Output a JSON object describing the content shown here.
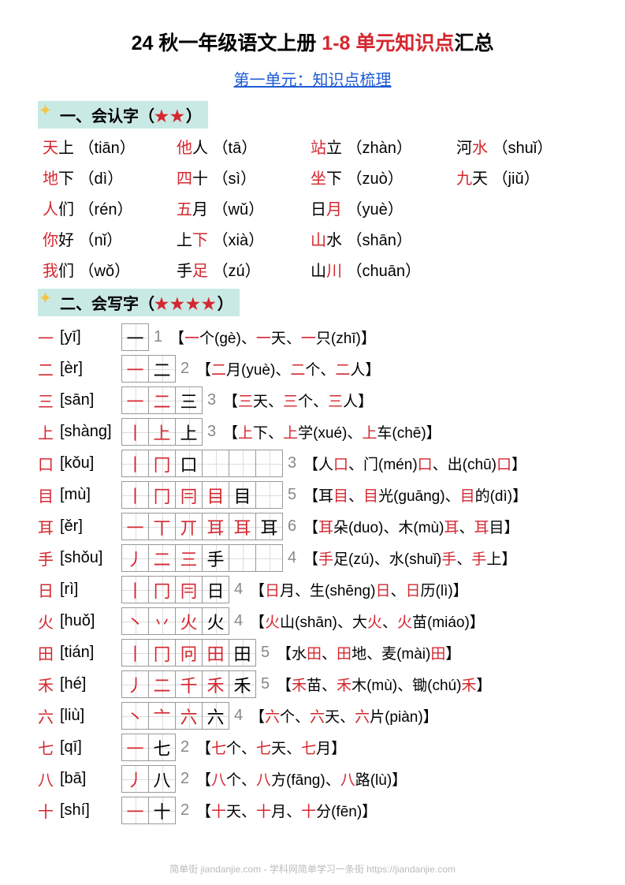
{
  "title": {
    "pre": "24 秋一年级语文上册 ",
    "highlight": "1-8 单元知识点",
    "post": "汇总"
  },
  "subtitle": "第一单元：知识点梳理",
  "section1": {
    "label_pre": "一、会认字（",
    "stars": "★★",
    "label_post": "）"
  },
  "recognize": [
    [
      {
        "hl": "天",
        "txt": "上",
        "py": "（tiān）"
      },
      {
        "hl": "他",
        "txt": "人",
        "py": "（tā）"
      },
      {
        "hl": "站",
        "txt": "立",
        "py": "（zhàn）"
      },
      {
        "txt": "河",
        "hl2": "水",
        "py": "（shuǐ）"
      }
    ],
    [
      {
        "hl": "地",
        "txt": "下",
        "py": "（dì）"
      },
      {
        "hl": "四",
        "txt": "十",
        "py": "（sì）"
      },
      {
        "hl": "坐",
        "txt": "下",
        "py": "（zuò）"
      },
      {
        "hl": "九",
        "txt": "天",
        "py": "（jiǔ）"
      }
    ],
    [
      {
        "hl": "人",
        "txt": "们",
        "py": "（rén）"
      },
      {
        "hl": "五",
        "txt": "月",
        "py": "（wǔ）"
      },
      {
        "txt": "日",
        "hl2": "月",
        "py": "（yuè）"
      }
    ],
    [
      {
        "hl": "你",
        "txt": "好",
        "py": "（nǐ）"
      },
      {
        "txt": "上",
        "hl2": "下",
        "py": "（xià）"
      },
      {
        "hl": "山",
        "txt": "水",
        "py": "（shān）"
      }
    ],
    [
      {
        "hl": "我",
        "txt": "们",
        "py": "（wǒ）"
      },
      {
        "txt": "手",
        "hl2": "足",
        "py": "（zú）"
      },
      {
        "txt": "山",
        "hl2": "川",
        "py": "（chuān）"
      }
    ]
  ],
  "section2": {
    "label_pre": "二、会写字（",
    "stars": "★★★★",
    "label_post": "）"
  },
  "write": [
    {
      "char": "一",
      "py": "[yī]",
      "strokes": [
        "一"
      ],
      "count": "1",
      "ex": "【<hl>一</hl>个(gè)、<hl>一</hl>天、<hl>一</hl>只(zhī)】"
    },
    {
      "char": "二",
      "py": "[èr]",
      "strokes": [
        "一",
        "二"
      ],
      "count": "2",
      "ex": "【<hl>二</hl>月(yuè)、<hl>二</hl>个、<hl>二</hl>人】"
    },
    {
      "char": "三",
      "py": "[sān]",
      "strokes": [
        "一",
        "二",
        "三"
      ],
      "count": "3",
      "ex": "【<hl>三</hl>天、<hl>三</hl>个、<hl>三</hl>人】"
    },
    {
      "char": "上",
      "py": "[shàng]",
      "strokes": [
        "丨",
        "上",
        "上"
      ],
      "count": "3",
      "ex": "【<hl>上</hl>下、<hl>上</hl>学(xué)、<hl>上</hl>车(chē)】"
    },
    {
      "char": "口",
      "py": "[kǒu]",
      "strokes": [
        "丨",
        "冂",
        "口"
      ],
      "count": "3",
      "ex": "【人<hl>口</hl>、门(mén)<hl>口</hl>、出(chū)<hl>口</hl>】",
      "wide": true
    },
    {
      "char": "目",
      "py": "[mù]",
      "strokes": [
        "丨",
        "冂",
        "冃",
        "目",
        "目"
      ],
      "count": "5",
      "ex": "【耳<hl>目</hl>、<hl>目</hl>光(guāng)、<hl>目</hl>的(dì)】",
      "wide": true
    },
    {
      "char": "耳",
      "py": "[ěr]",
      "strokes": [
        "一",
        "丅",
        "丌",
        "耳",
        "耳",
        "耳"
      ],
      "count": "6",
      "ex": "【<hl>耳</hl>朵(duo)、木(mù)<hl>耳</hl>、<hl>耳</hl>目】",
      "wide": true
    },
    {
      "char": "手",
      "py": "[shǒu]",
      "strokes": [
        "丿",
        "二",
        "三",
        "手"
      ],
      "count": "4",
      "ex": "【<hl>手</hl>足(zú)、水(shuǐ)<hl>手</hl>、<hl>手</hl>上】",
      "wide": true
    },
    {
      "char": "日",
      "py": "[rì]",
      "strokes": [
        "丨",
        "冂",
        "冃",
        "日"
      ],
      "count": "4",
      "ex": "【<hl>日</hl>月、生(shēng)<hl>日</hl>、<hl>日</hl>历(lì)】"
    },
    {
      "char": "火",
      "py": "[huǒ]",
      "strokes": [
        "丶",
        "丷",
        "火",
        "火"
      ],
      "count": "4",
      "ex": "【<hl>火</hl>山(shān)、大<hl>火</hl>、<hl>火</hl>苗(miáo)】"
    },
    {
      "char": "田",
      "py": "[tián]",
      "strokes": [
        "丨",
        "冂",
        "冋",
        "田",
        "田"
      ],
      "count": "5",
      "ex": "【水<hl>田</hl>、<hl>田</hl>地、麦(mài)<hl>田</hl>】"
    },
    {
      "char": "禾",
      "py": "[hé]",
      "strokes": [
        "丿",
        "二",
        "千",
        "禾",
        "禾"
      ],
      "count": "5",
      "ex": "【<hl>禾</hl>苗、<hl>禾</hl>木(mù)、锄(chú)<hl>禾</hl>】"
    },
    {
      "char": "六",
      "py": "[liù]",
      "strokes": [
        "丶",
        "亠",
        "六",
        "六"
      ],
      "count": "4",
      "ex": "【<hl>六</hl>个、<hl>六</hl>天、<hl>六</hl>片(piàn)】"
    },
    {
      "char": "七",
      "py": "[qī]",
      "strokes": [
        "一",
        "七"
      ],
      "count": "2",
      "ex": "【<hl>七</hl>个、<hl>七</hl>天、<hl>七</hl>月】"
    },
    {
      "char": "八",
      "py": "[bā]",
      "strokes": [
        "丿",
        "八"
      ],
      "count": "2",
      "ex": "【<hl>八</hl>个、<hl>八</hl>方(fāng)、<hl>八</hl>路(lù)】"
    },
    {
      "char": "十",
      "py": "[shí]",
      "strokes": [
        "一",
        "十"
      ],
      "count": "2",
      "ex": "【<hl>十</hl>天、<hl>十</hl>月、<hl>十</hl>分(fēn)】"
    }
  ],
  "footer": "简单街 jiandanjie.com - 学科网简单学习一条街 https://jiandanjie.com",
  "colors": {
    "red": "#d4272f",
    "blue": "#1e5bd6",
    "mint": "#c9e9e5",
    "gray": "#888888"
  }
}
